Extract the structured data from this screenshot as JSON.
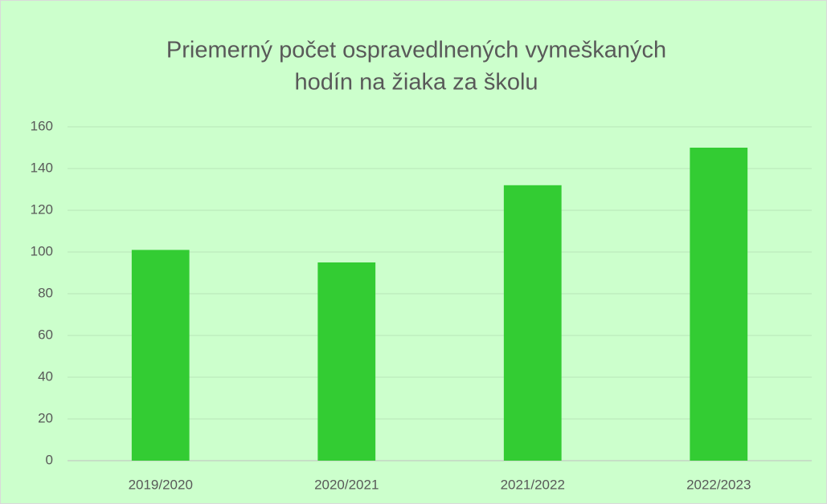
{
  "chart_data": {
    "type": "bar",
    "title": [
      "Priemerný počet ospravedlnených vymeškaných",
      "hodín na žiaka za školu"
    ],
    "categories": [
      "2019/2020",
      "2020/2021",
      "2021/2022",
      "2022/2023"
    ],
    "values": [
      101,
      95,
      132,
      150
    ],
    "color": "#33cc33",
    "ylim": [
      0,
      160
    ],
    "yticks": [
      0,
      20,
      40,
      60,
      80,
      100,
      120,
      140,
      160
    ],
    "grid": true
  }
}
